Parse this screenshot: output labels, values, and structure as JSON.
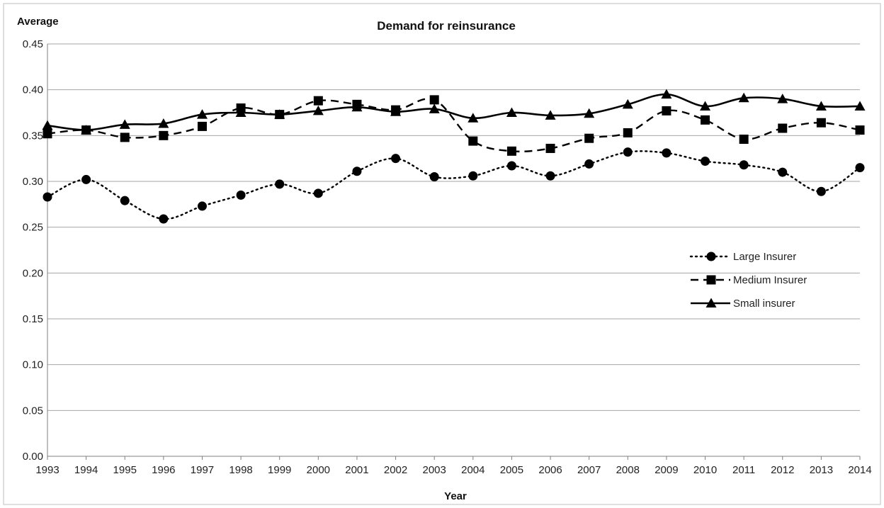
{
  "chart_data": {
    "type": "line",
    "title": "Demand for reinsurance",
    "ylabel": "Average",
    "xlabel": "Year",
    "ylim": [
      0,
      0.45
    ],
    "yticks": [
      "0.00",
      "0.05",
      "0.10",
      "0.15",
      "0.20",
      "0.25",
      "0.30",
      "0.35",
      "0.40",
      "0.45"
    ],
    "grid": true,
    "legend_position": "right",
    "x": [
      "1993",
      "1994",
      "1995",
      "1996",
      "1997",
      "1998",
      "1999",
      "2000",
      "2001",
      "2002",
      "2003",
      "2004",
      "2005",
      "2006",
      "2007",
      "2008",
      "2009",
      "2010",
      "2011",
      "2012",
      "2013",
      "2014"
    ],
    "series": [
      {
        "name": "Large Insurer",
        "marker": "circle",
        "line_style": "dotted",
        "values": [
          0.283,
          0.302,
          0.279,
          0.259,
          0.273,
          0.285,
          0.297,
          0.287,
          0.311,
          0.325,
          0.305,
          0.306,
          0.317,
          0.306,
          0.319,
          0.332,
          0.331,
          0.322,
          0.318,
          0.31,
          0.289,
          0.315
        ]
      },
      {
        "name": "Medium Insurer",
        "marker": "square",
        "line_style": "dashed",
        "values": [
          0.352,
          0.356,
          0.348,
          0.35,
          0.36,
          0.38,
          0.373,
          0.388,
          0.384,
          0.378,
          0.389,
          0.344,
          0.333,
          0.336,
          0.347,
          0.353,
          0.377,
          0.367,
          0.346,
          0.358,
          0.364,
          0.356
        ]
      },
      {
        "name": "Small insurer",
        "marker": "triangle",
        "line_style": "solid",
        "values": [
          0.361,
          0.356,
          0.362,
          0.363,
          0.373,
          0.375,
          0.373,
          0.377,
          0.381,
          0.376,
          0.379,
          0.369,
          0.375,
          0.372,
          0.374,
          0.384,
          0.395,
          0.382,
          0.391,
          0.39,
          0.382,
          0.382
        ]
      }
    ]
  },
  "colors": {
    "line": "#000000",
    "grid": "#a6a6a6",
    "border": "#bfbfbf",
    "text": "#222222"
  }
}
